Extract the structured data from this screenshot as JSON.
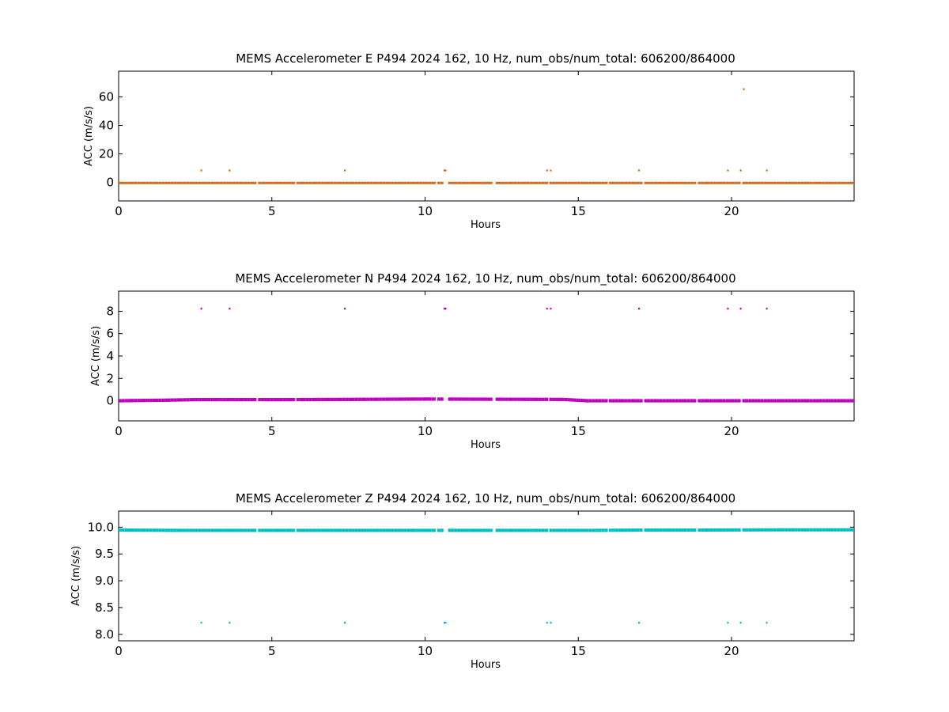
{
  "figure": {
    "background": "#ffffff"
  },
  "chart_data": [
    {
      "type": "scatter",
      "title": "MEMS Accelerometer E P494 2024 162, 10 Hz, num_obs/num_total: 606200/864000",
      "xlabel": "Hours",
      "ylabel": "ACC (m/s/s)",
      "xlim": [
        0,
        24
      ],
      "ylim": [
        -13,
        78
      ],
      "xticks": [
        0,
        5,
        10,
        15,
        20
      ],
      "yticks": [
        0,
        20,
        40,
        60
      ],
      "ytick_labels": [
        "0",
        "20",
        "40",
        "60"
      ],
      "color": "#d2691e",
      "series": [
        {
          "baseline": 0.1,
          "spread": 0.7,
          "segments": [
            [
              0.0,
              4.5
            ],
            [
              4.55,
              5.75
            ],
            [
              5.8,
              10.35
            ],
            [
              10.4,
              10.6
            ],
            [
              10.75,
              12.2
            ],
            [
              12.3,
              14.0
            ],
            [
              14.05,
              15.95
            ],
            [
              16.0,
              17.1
            ],
            [
              17.15,
              18.85
            ],
            [
              18.9,
              20.3
            ],
            [
              20.35,
              24.0
            ]
          ],
          "outliers": [
            {
              "x": 2.7,
              "y": 8.5
            },
            {
              "x": 3.62,
              "y": 8.5
            },
            {
              "x": 7.38,
              "y": 8.5
            },
            {
              "x": 10.63,
              "y": 8.5
            },
            {
              "x": 10.67,
              "y": 8.5
            },
            {
              "x": 13.98,
              "y": 8.5
            },
            {
              "x": 14.1,
              "y": 8.5
            },
            {
              "x": 16.98,
              "y": 8.5
            },
            {
              "x": 19.88,
              "y": 8.5
            },
            {
              "x": 20.3,
              "y": 8.5
            },
            {
              "x": 21.15,
              "y": 8.5
            },
            {
              "x": 20.4,
              "y": 65.5
            }
          ]
        }
      ]
    },
    {
      "type": "scatter",
      "title": "MEMS Accelerometer N P494 2024 162, 10 Hz, num_obs/num_total: 606200/864000",
      "xlabel": "Hours",
      "ylabel": "ACC (m/s/s)",
      "xlim": [
        0,
        24
      ],
      "ylim": [
        -1.8,
        9.8
      ],
      "xticks": [
        0,
        5,
        10,
        15,
        20
      ],
      "yticks": [
        0,
        2,
        4,
        6,
        8
      ],
      "ytick_labels": [
        "0",
        "2",
        "4",
        "6",
        "8"
      ],
      "color": "#bf00bf",
      "series": [
        {
          "baseline": 0.05,
          "spread": 0.3,
          "trend": [
            [
              0,
              0.0
            ],
            [
              1.5,
              0.05
            ],
            [
              2.5,
              0.1
            ],
            [
              5.5,
              0.1
            ],
            [
              10.0,
              0.15
            ],
            [
              14.5,
              0.12
            ],
            [
              15.3,
              0.0
            ],
            [
              24,
              0.0
            ]
          ],
          "segments": [
            [
              0.0,
              4.5
            ],
            [
              4.55,
              5.75
            ],
            [
              5.8,
              10.35
            ],
            [
              10.4,
              10.6
            ],
            [
              10.75,
              12.2
            ],
            [
              12.3,
              14.0
            ],
            [
              14.05,
              15.95
            ],
            [
              16.0,
              17.1
            ],
            [
              17.15,
              18.85
            ],
            [
              18.9,
              20.3
            ],
            [
              20.35,
              24.0
            ]
          ],
          "outliers": [
            {
              "x": 2.7,
              "y": 8.25
            },
            {
              "x": 3.62,
              "y": 8.25
            },
            {
              "x": 7.38,
              "y": 8.25
            },
            {
              "x": 10.63,
              "y": 8.25
            },
            {
              "x": 10.67,
              "y": 8.25
            },
            {
              "x": 13.98,
              "y": 8.25
            },
            {
              "x": 14.1,
              "y": 8.25
            },
            {
              "x": 16.98,
              "y": 8.25
            },
            {
              "x": 19.88,
              "y": 8.25
            },
            {
              "x": 20.3,
              "y": 8.25
            },
            {
              "x": 21.15,
              "y": 8.25
            }
          ]
        }
      ]
    },
    {
      "type": "scatter",
      "title": "MEMS Accelerometer Z P494 2024 162, 10 Hz, num_obs/num_total: 606200/864000",
      "xlabel": "Hours",
      "ylabel": "ACC (m/s/s)",
      "xlim": [
        0,
        24
      ],
      "ylim": [
        7.88,
        10.3
      ],
      "xticks": [
        0,
        5,
        10,
        15,
        20
      ],
      "yticks": [
        8.0,
        8.5,
        9.0,
        9.5,
        10.0
      ],
      "ytick_labels": [
        "8.0",
        "8.5",
        "9.0",
        "9.5",
        "10.0"
      ],
      "color": "#00bfbf",
      "series": [
        {
          "baseline": 9.94,
          "spread": 0.06,
          "trend": [
            [
              0,
              9.945
            ],
            [
              2,
              9.94
            ],
            [
              15.5,
              9.94
            ],
            [
              17,
              9.945
            ],
            [
              18.5,
              9.945
            ],
            [
              21.5,
              9.95
            ],
            [
              24,
              9.95
            ]
          ],
          "segments": [
            [
              0.0,
              4.5
            ],
            [
              4.55,
              5.75
            ],
            [
              5.8,
              10.35
            ],
            [
              10.4,
              10.6
            ],
            [
              10.75,
              12.2
            ],
            [
              12.3,
              14.0
            ],
            [
              14.05,
              15.95
            ],
            [
              16.0,
              17.1
            ],
            [
              17.15,
              18.85
            ],
            [
              18.9,
              20.3
            ],
            [
              20.35,
              24.0
            ]
          ],
          "outliers": [
            {
              "x": 2.7,
              "y": 8.22
            },
            {
              "x": 3.62,
              "y": 8.22
            },
            {
              "x": 7.38,
              "y": 8.22
            },
            {
              "x": 10.63,
              "y": 8.22
            },
            {
              "x": 10.67,
              "y": 8.22
            },
            {
              "x": 13.98,
              "y": 8.22
            },
            {
              "x": 14.1,
              "y": 8.22
            },
            {
              "x": 16.98,
              "y": 8.22
            },
            {
              "x": 19.88,
              "y": 8.22
            },
            {
              "x": 20.3,
              "y": 8.22
            },
            {
              "x": 21.15,
              "y": 8.22
            }
          ]
        }
      ]
    }
  ]
}
